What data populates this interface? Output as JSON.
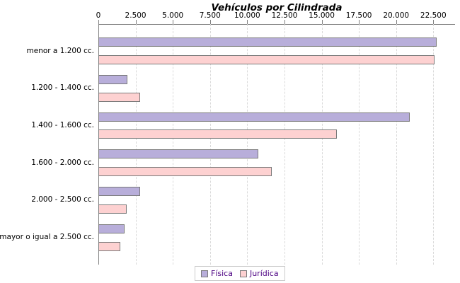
{
  "chart_data": {
    "type": "bar",
    "orientation": "horizontal",
    "title": "Vehículos por Cilindrada",
    "categories": [
      "menor a 1.200 cc.",
      "1.200 - 1.400 cc.",
      "1.400 - 1.600 cc.",
      "1.600 - 2.000 cc.",
      "2.000 - 2.500 cc.",
      "mayor o igual a 2.500 cc."
    ],
    "series": [
      {
        "name": "Física",
        "color": "#b8aeda",
        "values": [
          22700,
          1950,
          20900,
          10750,
          2800,
          1750
        ]
      },
      {
        "name": "Jurídica",
        "color": "#fdd1d1",
        "values": [
          22600,
          2800,
          16000,
          11650,
          1900,
          1450
        ]
      }
    ],
    "x_ticks": [
      {
        "value": 0,
        "label": "0"
      },
      {
        "value": 2500,
        "label": "2.500"
      },
      {
        "value": 5000,
        "label": "5.000"
      },
      {
        "value": 7500,
        "label": "7.500"
      },
      {
        "value": 10000,
        "label": "10.000"
      },
      {
        "value": 12500,
        "label": "12.500"
      },
      {
        "value": 15000,
        "label": "15.000"
      },
      {
        "value": 17500,
        "label": "17.500"
      },
      {
        "value": 20000,
        "label": "20.000"
      },
      {
        "value": 22500,
        "label": "22.500"
      },
      {
        "value": 25000,
        "label": ""
      }
    ],
    "xlim": [
      0,
      22500
    ],
    "grid": "vertical-dashed",
    "legend_position": "bottom",
    "colors": {
      "axis": "#808080",
      "gridline": "#d9d9d9",
      "bar_border": "#7a7a7a",
      "legend_text": "#4b0082",
      "text": "#000000",
      "background": "#ffffff"
    }
  }
}
